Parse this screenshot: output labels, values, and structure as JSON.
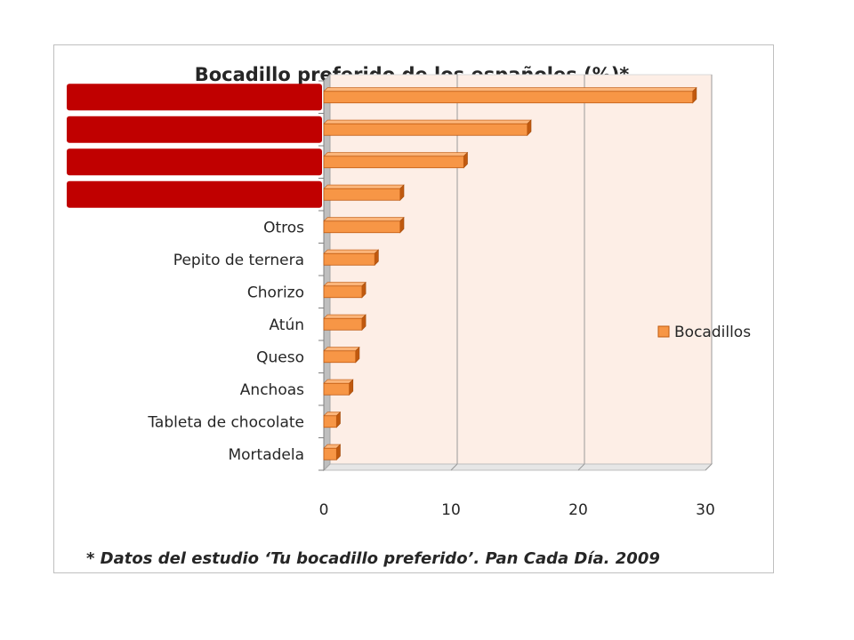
{
  "chart_data": {
    "type": "bar",
    "orientation": "horizontal",
    "title": "Bocadillo preferido de los españoles (%)*",
    "categories": [
      "",
      "",
      "",
      "",
      "Otros",
      "Pepito de ternera",
      "Chorizo",
      "Atún",
      "Queso",
      "Anchoas",
      "Tableta de chocolate",
      "Mortadela"
    ],
    "series": [
      {
        "name": "Bocadillos",
        "values": [
          29,
          16,
          11,
          6,
          6,
          4,
          3,
          3,
          2.5,
          2,
          1,
          1
        ]
      }
    ],
    "xlim": [
      0,
      30
    ],
    "xticks": [
      "0",
      "10",
      "20",
      "30"
    ],
    "grid": true,
    "legend": "right",
    "footnote": "* Datos del estudio ‘Tu bocadillo preferido’. Pan Cada Día. 2009",
    "colors": {
      "bar_front": "#f79646",
      "bar_side": "#c0590f",
      "bar_top": "#fbb57a",
      "redaction": "#c00000",
      "plot_wall": "#fdeee6",
      "gridline": "#9a9a9a"
    }
  }
}
